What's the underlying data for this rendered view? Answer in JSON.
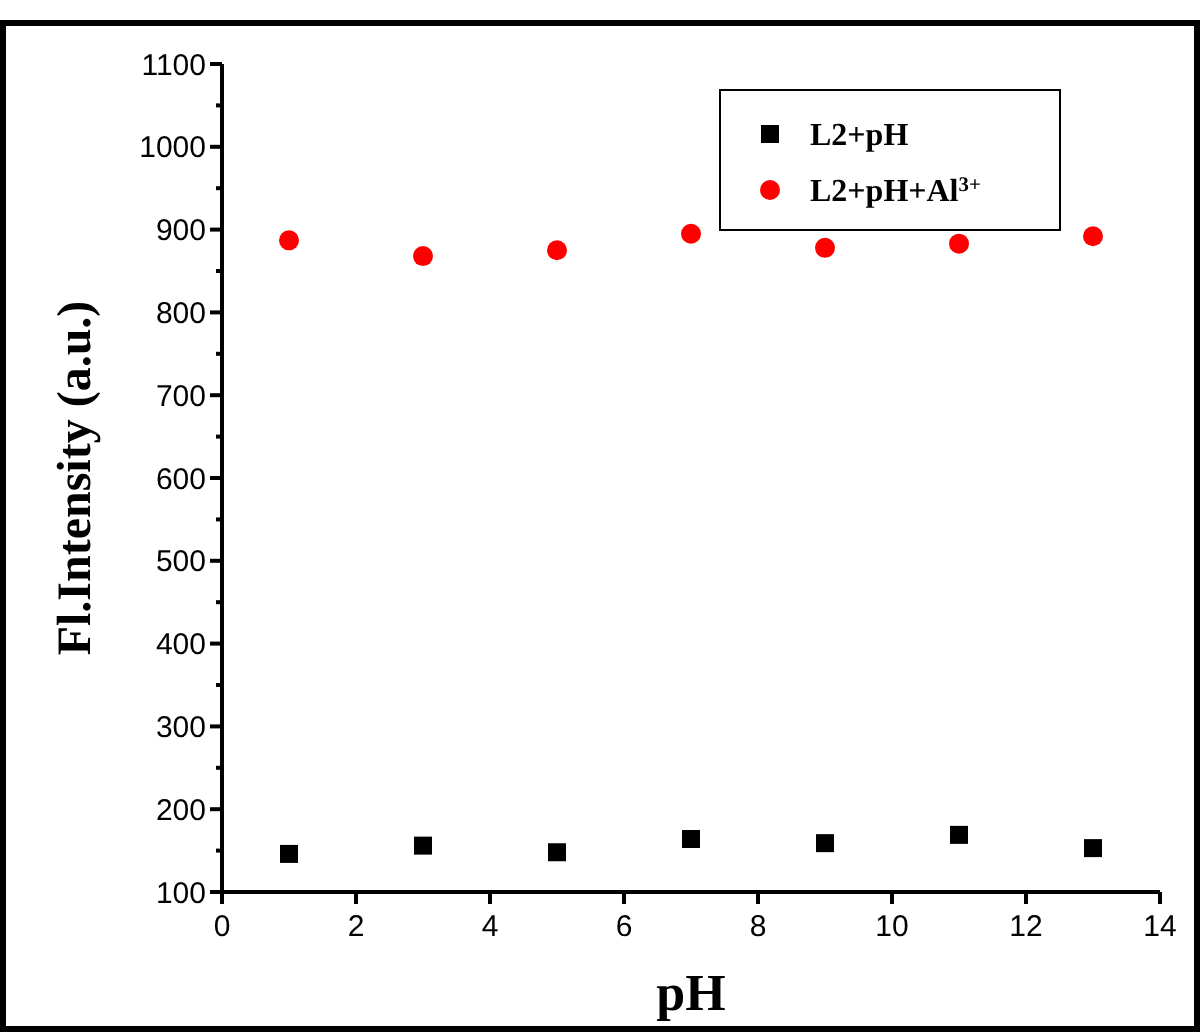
{
  "chart_data": {
    "type": "scatter",
    "xlabel": "pH",
    "ylabel": "Fl.Intensity (a.u.)",
    "xlim": [
      0,
      14
    ],
    "xticks": [
      0,
      2,
      4,
      6,
      8,
      10,
      12,
      14
    ],
    "ylim": [
      100,
      1100
    ],
    "yticks": [
      100,
      200,
      300,
      400,
      500,
      600,
      700,
      800,
      900,
      1000,
      1100
    ],
    "x": [
      1,
      3,
      5,
      7,
      9,
      11,
      13
    ],
    "legend": "top right",
    "grid": false,
    "series": [
      {
        "name": "L2+pH",
        "color": "#000000",
        "marker": "square",
        "values": [
          146,
          156,
          148,
          164,
          159,
          169,
          153
        ]
      },
      {
        "name": "L2+pH+Al$^{3+}$",
        "color": "#ff0000",
        "marker": "circle",
        "values": [
          887,
          868,
          875,
          895,
          878,
          883,
          892
        ]
      }
    ]
  }
}
